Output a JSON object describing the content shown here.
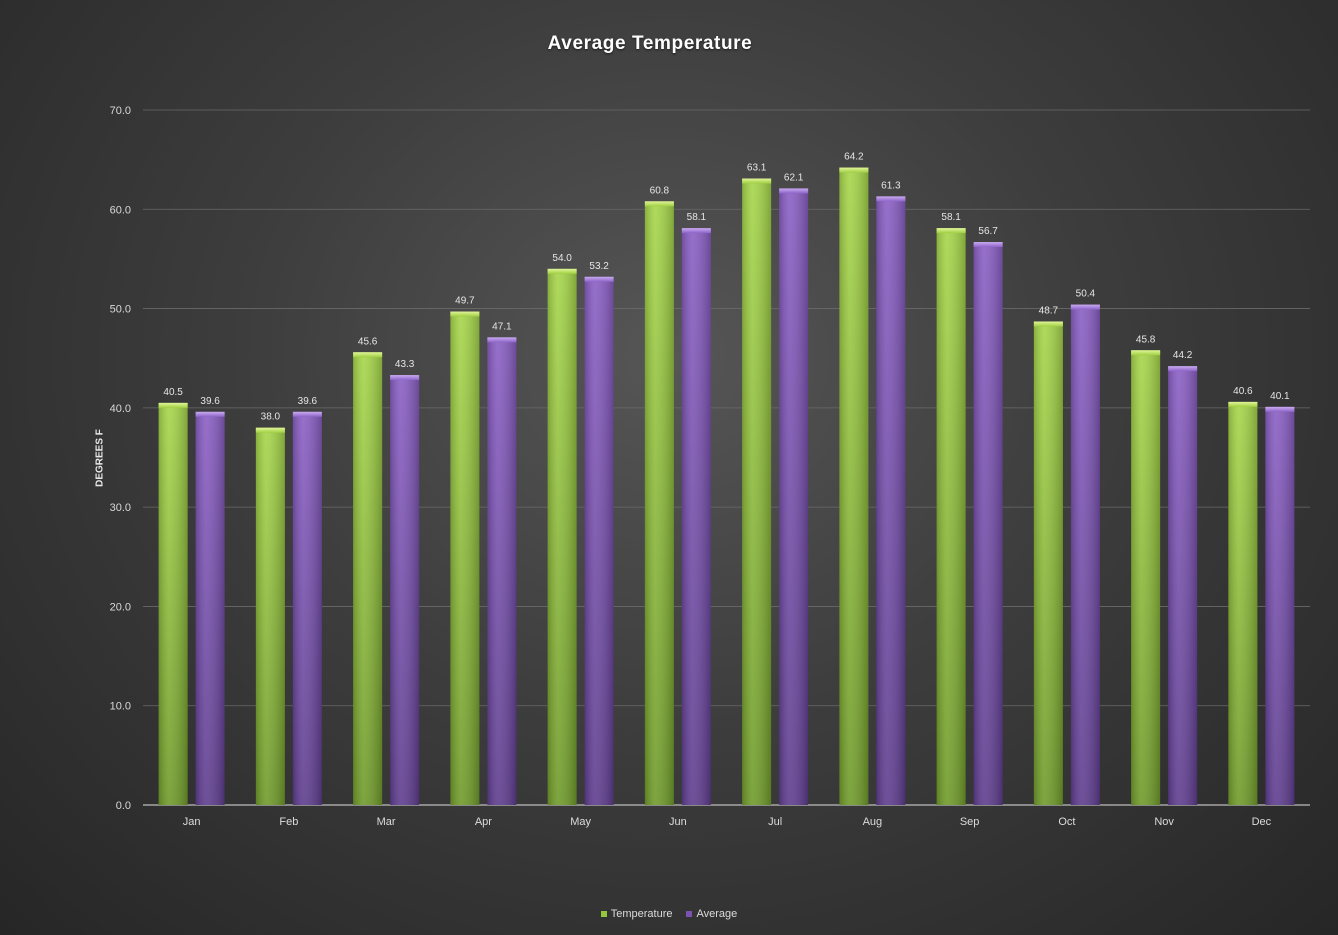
{
  "chart_data": {
    "type": "bar",
    "title": "Average Temperature",
    "xlabel": "",
    "ylabel": "DEGREES F",
    "ylim": [
      0,
      70
    ],
    "yticks": [
      "0.0",
      "10.0",
      "20.0",
      "30.0",
      "40.0",
      "50.0",
      "60.0",
      "70.0"
    ],
    "ytick_values": [
      0,
      10,
      20,
      30,
      40,
      50,
      60,
      70
    ],
    "grid": true,
    "legend_position": "bottom",
    "categories": [
      "Jan",
      "Feb",
      "Mar",
      "Apr",
      "May",
      "Jun",
      "Jul",
      "Aug",
      "Sep",
      "Oct",
      "Nov",
      "Dec"
    ],
    "series": [
      {
        "name": "Temperature",
        "color": "#93c83c",
        "values": [
          40.5,
          38.0,
          45.6,
          49.7,
          54.0,
          60.8,
          63.1,
          64.2,
          58.1,
          48.7,
          45.8,
          40.6
        ],
        "labels": [
          "40.5",
          "38.0",
          "45.6",
          "49.7",
          "54.0",
          "60.8",
          "63.1",
          "64.2",
          "58.1",
          "48.7",
          "45.8",
          "40.6"
        ]
      },
      {
        "name": "Average",
        "color": "#7b52b0",
        "values": [
          39.6,
          39.6,
          43.3,
          47.1,
          53.2,
          58.1,
          62.1,
          61.3,
          56.7,
          50.4,
          44.2,
          40.1
        ],
        "labels": [
          "39.6",
          "39.6",
          "43.3",
          "47.1",
          "53.2",
          "58.1",
          "62.1",
          "61.3",
          "56.7",
          "50.4",
          "44.2",
          "40.1"
        ]
      }
    ]
  }
}
